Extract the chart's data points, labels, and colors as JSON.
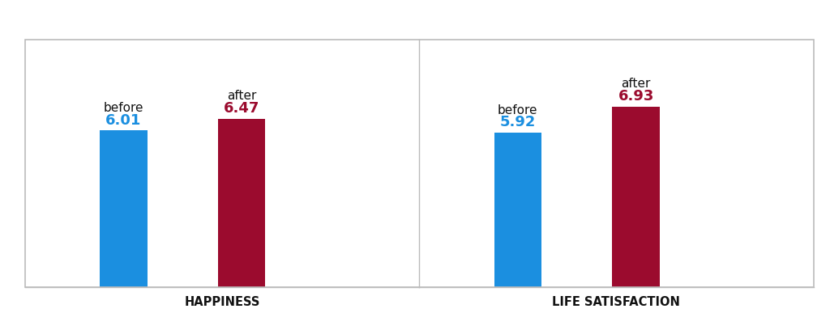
{
  "panels": [
    {
      "title": "HAPPINESS",
      "bars": [
        {
          "label": "before",
          "value": 6.01,
          "color": "#1B8FE0"
        },
        {
          "label": "after",
          "value": 6.47,
          "color": "#9B0B2E"
        }
      ]
    },
    {
      "title": "LIFE SATISFACTION",
      "bars": [
        {
          "label": "before",
          "value": 5.92,
          "color": "#1B8FE0"
        },
        {
          "label": "after",
          "value": 6.93,
          "color": "#9B0B2E"
        }
      ]
    }
  ],
  "ylim": [
    0,
    9.5
  ],
  "bar_width": 0.12,
  "x_positions": [
    0.25,
    0.55
  ],
  "xlim": [
    0,
    1
  ],
  "value_fontsize": 13,
  "label_fontsize": 11,
  "title_fontsize": 10.5,
  "background_color": "#ffffff",
  "divider_color": "#bbbbbb",
  "title_color": "#111111",
  "border_color": "#bbbbbb",
  "value_blue_color": "#1B8FE0",
  "value_red_color": "#9B0B2E",
  "label_color": "#111111"
}
